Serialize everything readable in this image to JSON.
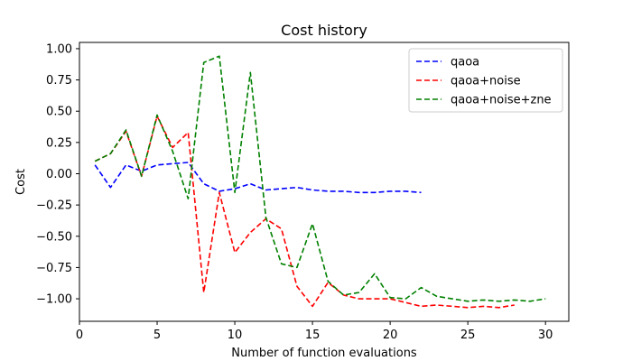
{
  "chart_data": {
    "type": "line",
    "title": "Cost history",
    "xlabel": "Number of function evaluations",
    "ylabel": "Cost",
    "xlim": [
      0,
      31.5
    ],
    "ylim": [
      -1.18,
      1.05
    ],
    "xticks": [
      0,
      5,
      10,
      15,
      20,
      25,
      30
    ],
    "yticks": [
      -1.0,
      -0.75,
      -0.5,
      -0.25,
      0.0,
      0.25,
      0.5,
      0.75,
      1.0
    ],
    "ytick_labels": [
      "−1.00",
      "−0.75",
      "−0.50",
      "−0.25",
      "0.00",
      "0.25",
      "0.50",
      "0.75",
      "1.00"
    ],
    "legend_position": "top-right",
    "grid": false,
    "series": [
      {
        "name": "qaoa",
        "color": "#0000ff",
        "line_style": "dashed",
        "x": [
          1,
          2,
          3,
          4,
          5,
          6,
          7,
          8,
          9,
          10,
          11,
          12,
          13,
          14,
          15,
          16,
          17,
          18,
          19,
          20,
          21,
          22
        ],
        "y": [
          0.07,
          -0.11,
          0.07,
          0.02,
          0.07,
          0.08,
          0.09,
          -0.08,
          -0.14,
          -0.12,
          -0.08,
          -0.13,
          -0.12,
          -0.11,
          -0.13,
          -0.14,
          -0.14,
          -0.15,
          -0.15,
          -0.14,
          -0.14,
          -0.15
        ]
      },
      {
        "name": "qaoa+noise",
        "color": "#ff0000",
        "line_style": "dashed",
        "x": [
          1,
          2,
          3,
          4,
          5,
          6,
          7,
          8,
          9,
          10,
          11,
          12,
          13,
          14,
          15,
          16,
          17,
          18,
          19,
          20,
          21,
          22,
          23,
          24,
          25,
          26,
          27,
          28
        ],
        "y": [
          0.1,
          0.16,
          0.34,
          -0.02,
          0.46,
          0.21,
          0.33,
          -0.95,
          -0.15,
          -0.63,
          -0.47,
          -0.36,
          -0.44,
          -0.9,
          -1.06,
          -0.87,
          -0.97,
          -1.0,
          -1.0,
          -1.0,
          -1.03,
          -1.06,
          -1.05,
          -1.06,
          -1.07,
          -1.06,
          -1.07,
          -1.05
        ]
      },
      {
        "name": "qaoa+noise+zne",
        "color": "#008000",
        "line_style": "dashed",
        "x": [
          1,
          2,
          3,
          4,
          5,
          6,
          7,
          8,
          9,
          10,
          11,
          12,
          13,
          14,
          15,
          16,
          17,
          18,
          19,
          20,
          21,
          22,
          23,
          24,
          25,
          26,
          27,
          28,
          29,
          30
        ],
        "y": [
          0.1,
          0.16,
          0.35,
          -0.02,
          0.47,
          0.18,
          -0.2,
          0.89,
          0.94,
          -0.15,
          0.81,
          -0.35,
          -0.72,
          -0.75,
          -0.4,
          -0.86,
          -0.97,
          -0.95,
          -0.8,
          -0.99,
          -1.0,
          -0.91,
          -0.98,
          -1.0,
          -1.02,
          -1.01,
          -1.02,
          -1.01,
          -1.02,
          -1.0
        ]
      }
    ]
  }
}
